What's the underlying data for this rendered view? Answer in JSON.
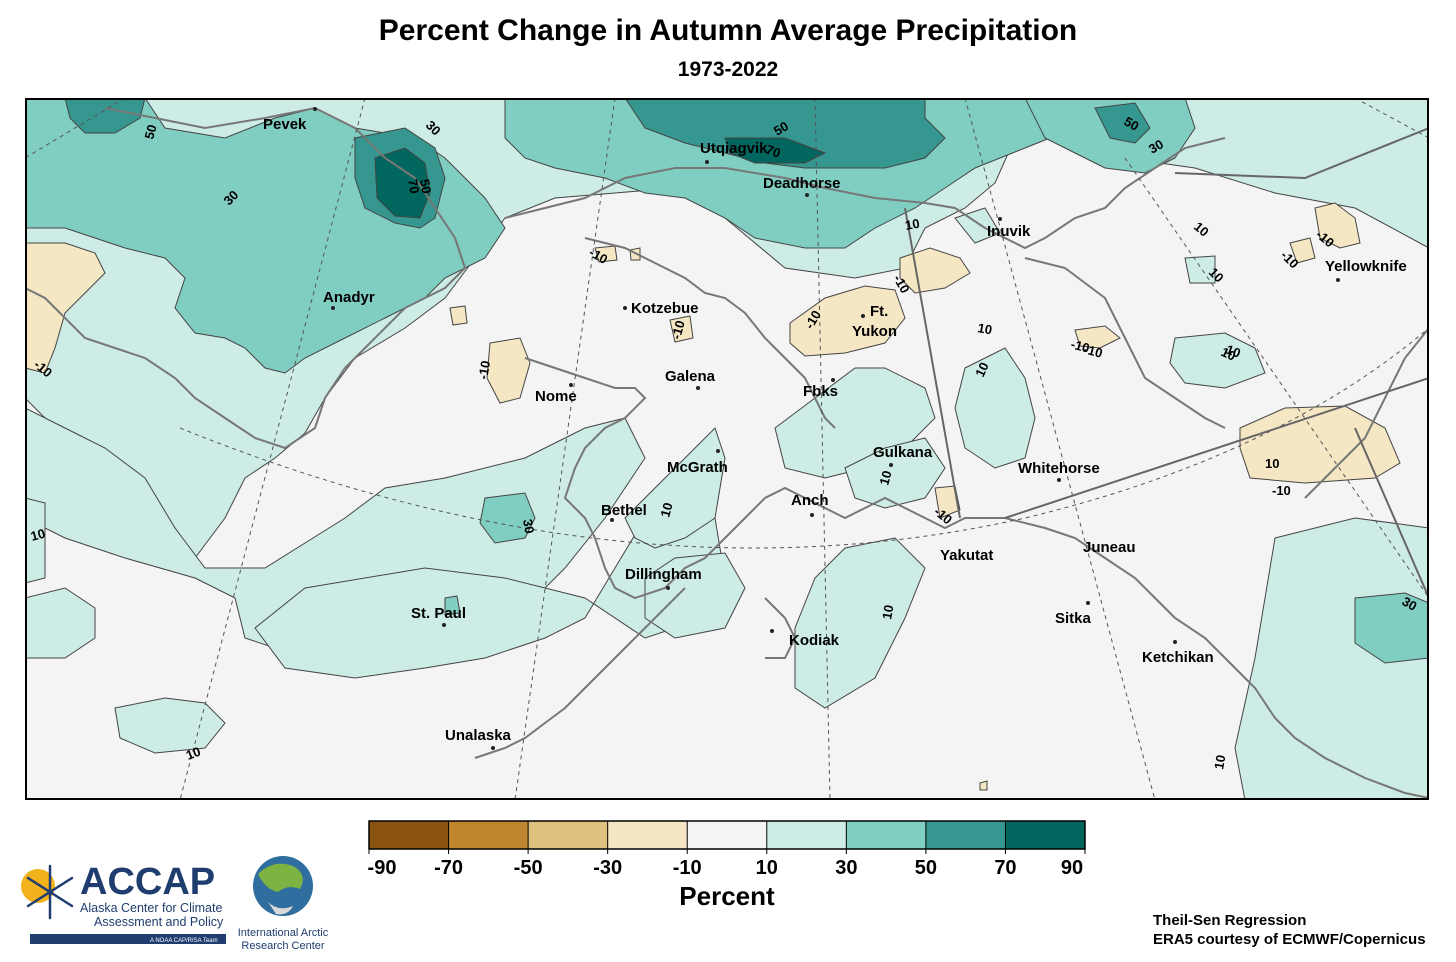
{
  "title": "Percent Change in Autumn Average Precipitation",
  "subtitle": "1973-2022",
  "colors": {
    "c_n90_n70": "#8a5210",
    "c_n70_n50": "#c0862f",
    "c_n50_n30": "#dfc17f",
    "c_n30_n10": "#f5e7c4",
    "c_n10_10": "#f4f4f4",
    "c_10_30": "#cdece6",
    "c_30_50": "#80cdc1",
    "c_50_70": "#35978f",
    "c_70_90": "#01665e",
    "coast": "#777777",
    "grid": "#555555"
  },
  "legend": {
    "label": "Percent",
    "ticks": [
      "-90",
      "-70",
      "-50",
      "-30",
      "-10",
      "10",
      "30",
      "50",
      "70",
      "90"
    ],
    "bins": [
      "c_n90_n70",
      "c_n70_n50",
      "c_n50_n30",
      "c_n30_n10",
      "c_n10_10",
      "c_10_30",
      "c_30_50",
      "c_50_70",
      "c_70_90"
    ]
  },
  "cities": [
    {
      "name": "Pevek"
    },
    {
      "name": "Utqiagvik"
    },
    {
      "name": "Deadhorse"
    },
    {
      "name": "Inuvik"
    },
    {
      "name": "Yellowknife"
    },
    {
      "name": "Anadyr"
    },
    {
      "name": "Kotzebue"
    },
    {
      "name": "Ft."
    },
    {
      "name": "Yukon"
    },
    {
      "name": "Galena"
    },
    {
      "name": "Nome"
    },
    {
      "name": "Fbks"
    },
    {
      "name": "Gulkana"
    },
    {
      "name": "McGrath"
    },
    {
      "name": "Whitehorse"
    },
    {
      "name": "Bethel"
    },
    {
      "name": "Anch"
    },
    {
      "name": "Yakutat"
    },
    {
      "name": "Juneau"
    },
    {
      "name": "Dillingham"
    },
    {
      "name": "St. Paul"
    },
    {
      "name": "Sitka"
    },
    {
      "name": "Kodiak"
    },
    {
      "name": "Ketchikan"
    },
    {
      "name": "Unalaska"
    }
  ],
  "contour_labels": [
    "50",
    "30",
    "50",
    "70",
    "50",
    "70",
    "30",
    "50",
    "30",
    "10",
    "10",
    "-10",
    "-10",
    "-10",
    "-10",
    "-10",
    "-10",
    "-10",
    "-10",
    "10",
    "10",
    "10",
    "10",
    "10",
    "-10",
    "-10",
    "10",
    "30",
    "10",
    "10",
    "10",
    "30",
    "10",
    "10",
    "-10",
    "10",
    "-10"
  ],
  "credits": {
    "line1": "Theil-Sen Regression",
    "line2": "ERA5 courtesy of ECMWF/Copernicus"
  },
  "logos": {
    "accap_name": "ACCAP",
    "accap_line1": "Alaska Center for Climate",
    "accap_line2": "Assessment and Policy",
    "accap_tag": "A NOAA CAP/RISA Team",
    "iarc_line1": "International Arctic",
    "iarc_line2": "Research Center"
  }
}
